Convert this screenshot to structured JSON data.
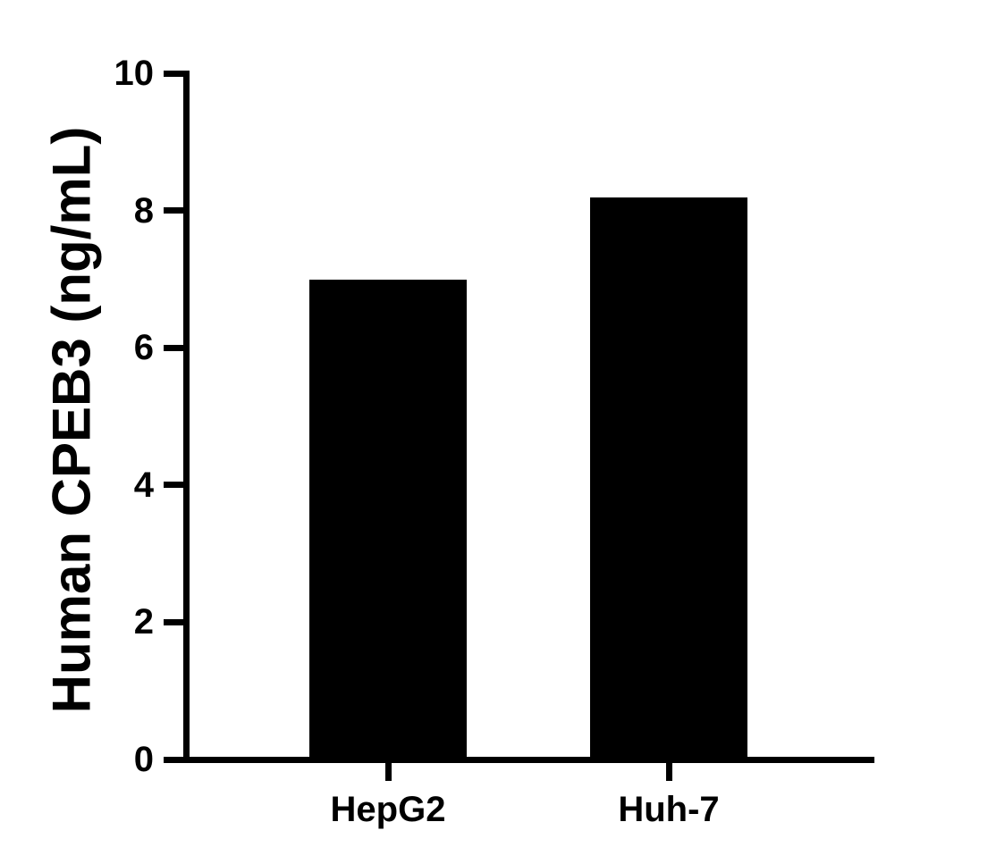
{
  "chart_data": {
    "type": "bar",
    "title": "",
    "xlabel": "",
    "ylabel": "Human CPEB3 (ng/mL)",
    "categories": [
      "HepG2",
      "Huh-7"
    ],
    "values": [
      7.0,
      8.2
    ],
    "ylim": [
      0,
      10
    ],
    "yticks": [
      0,
      2,
      4,
      6,
      8,
      10
    ],
    "grid": false,
    "legend_position": "none",
    "bar_color": "#000000",
    "axis_color": "#000000",
    "background_color": "#ffffff",
    "text_color": "#000000"
  }
}
